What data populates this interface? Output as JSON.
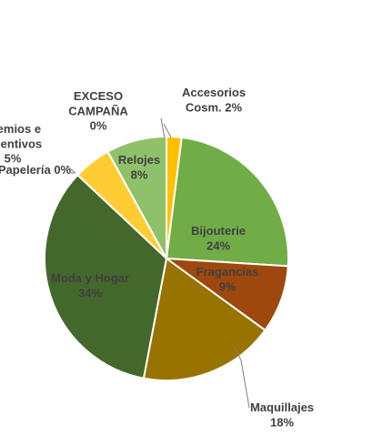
{
  "chart_data": {
    "type": "pie",
    "slices": [
      {
        "label": "Accesorios\nCosm.",
        "pct_text": "2%",
        "value": 2,
        "color": "#FFC000",
        "label_color": "#404040"
      },
      {
        "label": "Bijouterie",
        "pct_text": "24%",
        "value": 24,
        "color": "#70AD47",
        "label_color": "#404040"
      },
      {
        "label": "Fragancias",
        "pct_text": "9%",
        "value": 9,
        "color": "#9E480E",
        "label_color": "#404040"
      },
      {
        "label": "Maquillajes",
        "pct_text": "18%",
        "value": 18,
        "color": "#997300",
        "label_color": "#404040"
      },
      {
        "label": "Moda y Hogar",
        "pct_text": "34%",
        "value": 34,
        "color": "#43682B",
        "label_color": "#404040"
      },
      {
        "label": "Papelería",
        "pct_text": "0%",
        "value": 0,
        "color": "#FFC000",
        "label_color": "#404040"
      },
      {
        "label": "Premios e\nIncentivos",
        "pct_text": "5%",
        "value": 5,
        "color": "#FFCD33",
        "label_color": "#404040"
      },
      {
        "label": "Relojes",
        "pct_text": "8%",
        "value": 8,
        "color": "#8FC16B",
        "label_color": "#404040"
      },
      {
        "label": "EXCESO\nCAMPAÑA",
        "pct_text": "0%",
        "value": 0,
        "color": "#FFC000",
        "label_color": "#404040"
      }
    ]
  }
}
